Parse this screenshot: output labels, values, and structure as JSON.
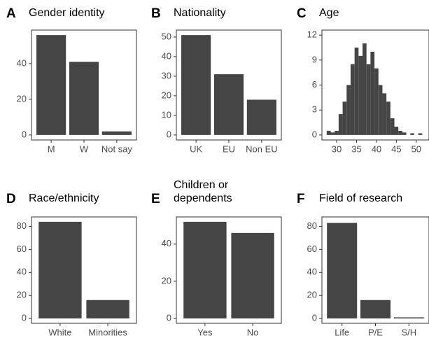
{
  "chart_data": [
    {
      "panel": "A",
      "type": "bar",
      "title": "Gender identity",
      "categories": [
        "M",
        "W",
        "Not say"
      ],
      "values": [
        56,
        41,
        2
      ],
      "color": "#454545",
      "ylim": [
        -2.8,
        58.8
      ],
      "yticks": [
        0,
        20,
        40
      ]
    },
    {
      "panel": "B",
      "type": "bar",
      "title": "Nationality",
      "categories": [
        "UK",
        "EU",
        "Non EU"
      ],
      "values": [
        51,
        31,
        18
      ],
      "color": "#454545",
      "ylim": [
        -2.55,
        53.55
      ],
      "yticks": [
        0,
        10,
        20,
        30,
        40,
        50
      ]
    },
    {
      "panel": "C",
      "type": "histogram",
      "title": "Age",
      "bins": [
        27.5,
        28.5,
        29.5,
        30.5,
        31.5,
        32.5,
        33.5,
        34.5,
        35.5,
        36.5,
        37.5,
        38.5,
        39.5,
        40.5,
        41.5,
        42.5,
        43.5,
        44.5,
        45.5,
        46.5,
        47.5,
        48.5,
        49.5,
        50.5,
        51.5
      ],
      "values": [
        0.5,
        0.3,
        0.5,
        2.5,
        4,
        6,
        8.5,
        10.5,
        9.5,
        11,
        8.5,
        10,
        8,
        6,
        5,
        4,
        2,
        1,
        0.5,
        0.3,
        0,
        0.2,
        0,
        0.2
      ],
      "color": "#454545",
      "xlim": [
        26.3,
        53.2
      ],
      "xticks": [
        30,
        35,
        40,
        45,
        50
      ],
      "ylim": [
        -0.6,
        12.6
      ],
      "yticks": [
        0,
        3,
        6,
        9,
        12
      ]
    },
    {
      "panel": "D",
      "type": "bar",
      "title": "Race/ethnicity",
      "categories": [
        "White",
        "Minorities"
      ],
      "values": [
        84,
        16
      ],
      "color": "#454545",
      "ylim": [
        -4.2,
        88.2
      ],
      "yticks": [
        0,
        20,
        40,
        60,
        80
      ]
    },
    {
      "panel": "E",
      "type": "bar",
      "title": "Children or dependents",
      "categories": [
        "Yes",
        "No"
      ],
      "values": [
        52,
        46
      ],
      "color": "#454545",
      "ylim": [
        -2.6,
        54.6
      ],
      "yticks": [
        0,
        20,
        40
      ]
    },
    {
      "panel": "F",
      "type": "bar",
      "title": "Field of research",
      "categories": [
        "Life",
        "P/E",
        "S/H"
      ],
      "values": [
        83,
        16,
        1
      ],
      "color": "#454545",
      "ylim": [
        -4.2,
        88.2
      ],
      "yticks": [
        0,
        20,
        40,
        60,
        80
      ]
    }
  ]
}
